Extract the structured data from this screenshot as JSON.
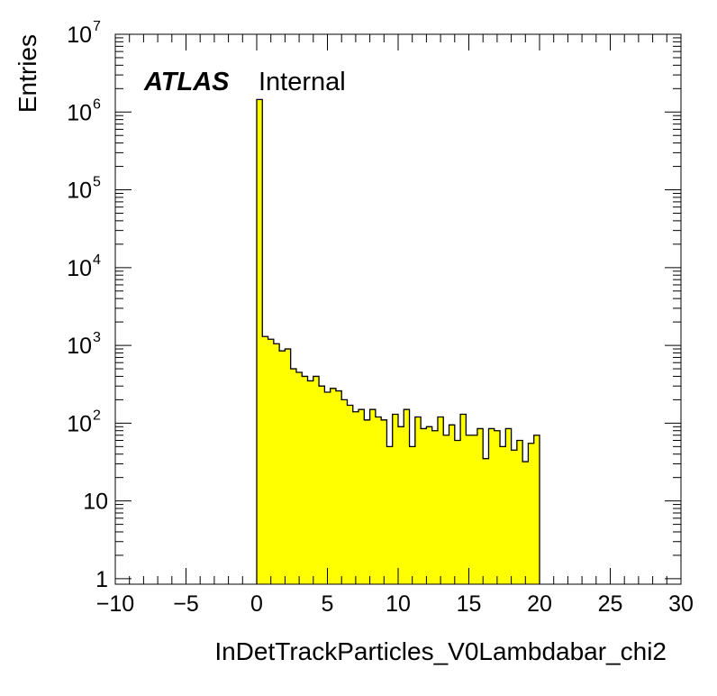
{
  "chart_data": {
    "type": "histogram",
    "title": "",
    "xlabel": "InDetTrackParticles_V0Lambdabar_chi2",
    "ylabel": "Entries",
    "xlim": [
      -10,
      30
    ],
    "ylim": [
      0.85,
      10000000
    ],
    "yscale": "log",
    "x_ticks": [
      -10,
      -5,
      0,
      5,
      10,
      15,
      20,
      25,
      30
    ],
    "x_tick_labels": [
      "−10",
      "−5",
      "0",
      "5",
      "10",
      "15",
      "20",
      "25",
      "30"
    ],
    "y_ticks": [
      {
        "value": 1,
        "base": "1",
        "exp": ""
      },
      {
        "value": 10,
        "base": "10",
        "exp": ""
      },
      {
        "value": 100,
        "base": "10",
        "exp": "2"
      },
      {
        "value": 1000,
        "base": "10",
        "exp": "3"
      },
      {
        "value": 10000,
        "base": "10",
        "exp": "4"
      },
      {
        "value": 100000,
        "base": "10",
        "exp": "5"
      },
      {
        "value": 1000000,
        "base": "10",
        "exp": "6"
      },
      {
        "value": 10000000,
        "base": "10",
        "exp": "7"
      }
    ],
    "bin_start": 0,
    "bin_width": 0.4,
    "fill_color": "#ffff00",
    "line_color": "#000000",
    "values": [
      1450000,
      1300,
      1200,
      1050,
      850,
      900,
      500,
      450,
      400,
      350,
      400,
      300,
      250,
      280,
      260,
      200,
      170,
      140,
      150,
      110,
      150,
      120,
      110,
      50,
      130,
      90,
      150,
      50,
      120,
      85,
      90,
      80,
      120,
      70,
      95,
      60,
      130,
      70,
      70,
      85,
      35,
      85,
      80,
      50,
      85,
      45,
      60,
      32,
      55,
      70
    ],
    "annotations": {
      "experiment": "ATLAS",
      "status": "Internal"
    }
  }
}
